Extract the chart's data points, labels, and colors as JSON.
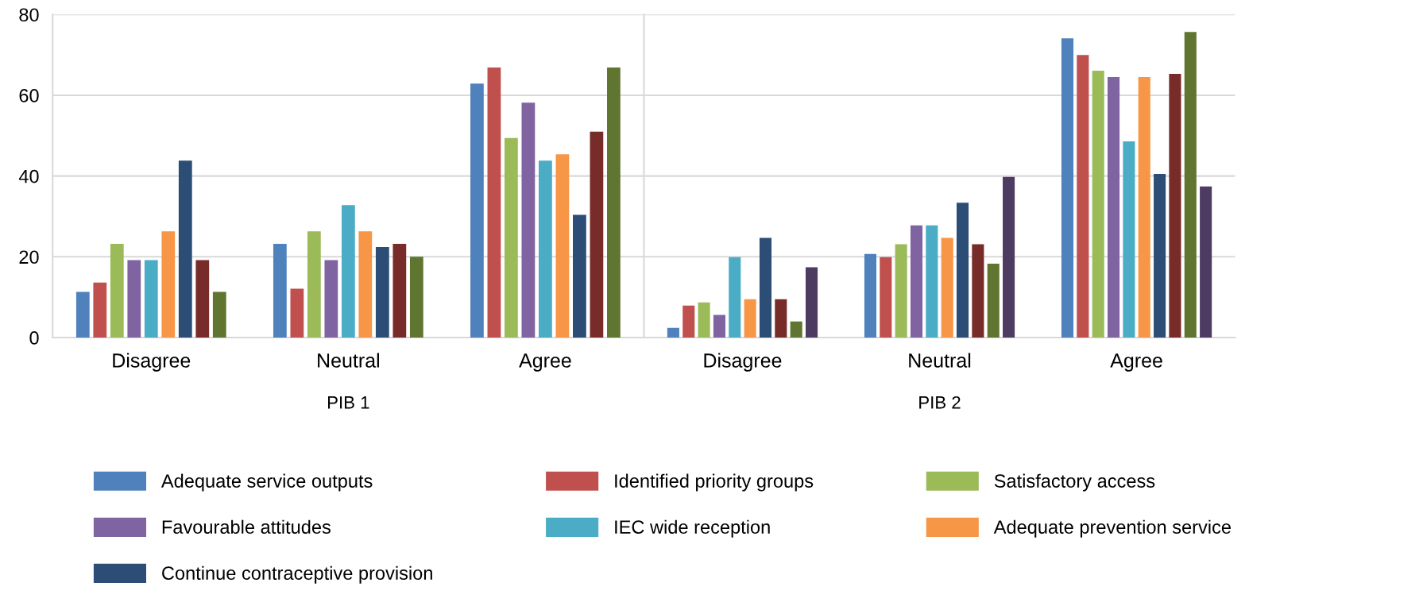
{
  "chart_data": [
    {
      "type": "bar",
      "xlabel": "PIB 1",
      "categories": [
        "Disagree",
        "Neutral",
        "Agree"
      ],
      "ylim": [
        0,
        80
      ],
      "yticks": [
        0,
        20,
        40,
        60,
        80
      ],
      "grid": "y",
      "legend": "bottom",
      "series": [
        {
          "name": "Adequate service outputs",
          "color": "#4f81bd",
          "values": [
            11.3,
            23.2,
            62.9
          ]
        },
        {
          "name": "Identified priority groups",
          "color": "#c0504d",
          "values": [
            13.6,
            12.1,
            66.9
          ]
        },
        {
          "name": "Satisfactory access",
          "color": "#9bbb59",
          "values": [
            23.2,
            26.3,
            49.4
          ]
        },
        {
          "name": "Favourable attitudes",
          "color": "#8064a2",
          "values": [
            19.2,
            19.2,
            58.2
          ]
        },
        {
          "name": "IEC wide reception",
          "color": "#4bacc6",
          "values": [
            19.2,
            32.8,
            43.8
          ]
        },
        {
          "name": "Adequate prevention service",
          "color": "#f79646",
          "values": [
            26.3,
            26.3,
            45.4
          ]
        },
        {
          "name": "Continue contraceptive provision",
          "color": "#2c4d75",
          "values": [
            43.8,
            22.4,
            30.4
          ]
        },
        {
          "color": "#772c2a",
          "values": [
            19.2,
            23.2,
            51.0
          ]
        },
        {
          "color": "#5f7530",
          "values": [
            11.3,
            20.0,
            66.9
          ]
        }
      ]
    },
    {
      "type": "bar",
      "xlabel": "PIB 2",
      "categories": [
        "Disagree",
        "Neutral",
        "Agree"
      ],
      "ylim": [
        0,
        80
      ],
      "yticks": [
        0,
        20,
        40,
        60,
        80
      ],
      "grid": "y",
      "tick_labels": "x",
      "series": [
        {
          "color": "#4f81bd",
          "values": [
            2.4,
            20.7,
            74.1
          ]
        },
        {
          "color": "#c0504d",
          "values": [
            7.9,
            19.9,
            70.0
          ]
        },
        {
          "color": "#9bbb59",
          "values": [
            8.7,
            23.1,
            66.1
          ]
        },
        {
          "color": "#8064a2",
          "values": [
            5.6,
            27.8,
            64.5
          ]
        },
        {
          "color": "#4bacc6",
          "values": [
            19.9,
            27.8,
            48.6
          ]
        },
        {
          "color": "#f79646",
          "values": [
            9.5,
            24.7,
            64.5
          ]
        },
        {
          "color": "#2c4d75",
          "values": [
            24.7,
            33.4,
            40.5
          ]
        },
        {
          "color": "#772c2a",
          "values": [
            9.5,
            23.1,
            65.3
          ]
        },
        {
          "color": "#5f7530",
          "values": [
            4.0,
            18.3,
            75.7
          ]
        },
        {
          "color": "#4d3b62",
          "values": [
            17.4,
            39.8,
            37.4
          ]
        }
      ]
    }
  ]
}
